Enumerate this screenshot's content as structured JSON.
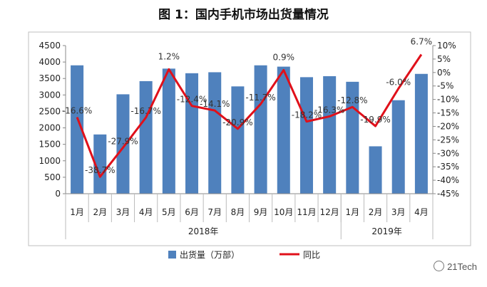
{
  "title": "图 1：国内手机市场出货量情况",
  "watermark": "21Tech",
  "chart_data": {
    "type": "bar+line",
    "categories": [
      "1月",
      "2月",
      "3月",
      "4月",
      "5月",
      "6月",
      "7月",
      "8月",
      "9月",
      "10月",
      "11月",
      "12月",
      "1月",
      "2月",
      "3月",
      "4月"
    ],
    "year_groups": [
      {
        "label": "2018年",
        "count": 12
      },
      {
        "label": "2019年",
        "count": 4
      }
    ],
    "series": [
      {
        "name": "出货量（万部）",
        "type": "bar",
        "axis": "left",
        "color": "#4f81bd",
        "values": [
          3900,
          1800,
          3020,
          3420,
          3800,
          3660,
          3690,
          3260,
          3900,
          3860,
          3540,
          3570,
          3400,
          1440,
          2840,
          3640
        ]
      },
      {
        "name": "同比",
        "type": "line",
        "axis": "right",
        "color": "#e0101a",
        "values": [
          -16.6,
          -38.7,
          -27.9,
          -16.7,
          1.2,
          -12.4,
          -14.1,
          -20.9,
          -11.7,
          0.9,
          -18.2,
          -16.3,
          -12.8,
          -19.9,
          -6.0,
          6.7
        ],
        "labels": [
          "-16.6%",
          "-38.7%",
          "-27.9%",
          "-16.7%",
          "1.2%",
          "-12.4%",
          "-14.1%",
          "-20.9%",
          "-11.7%",
          "0.9%",
          "-18.2%",
          "-16.3%",
          "-12.8%",
          "-19.9%",
          "-6.0%",
          "6.7%"
        ]
      }
    ],
    "y_left": {
      "min": 0,
      "max": 4500,
      "step": 500,
      "ticks": [
        "0",
        "500",
        "1000",
        "1500",
        "2000",
        "2500",
        "3000",
        "3500",
        "4000",
        "4500"
      ]
    },
    "y_right": {
      "min": -45,
      "max": 10,
      "step": 5,
      "ticks": [
        "-45%",
        "-40%",
        "-35%",
        "-30%",
        "-25%",
        "-20%",
        "-15%",
        "-10%",
        "-5%",
        "0%",
        "5%",
        "10%"
      ]
    },
    "grid": false,
    "legend_position": "bottom"
  }
}
